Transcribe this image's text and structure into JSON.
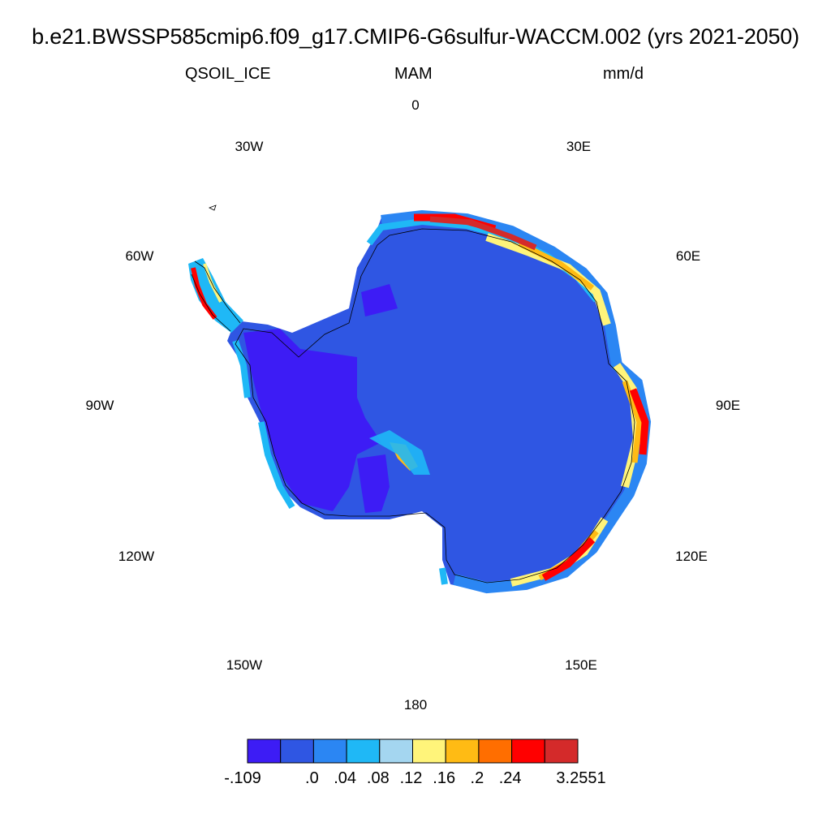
{
  "title": "b.e21.BWSSP585cmip6.f09_g17.CMIP6-G6sulfur-WACCM.002 (yrs 2021-2050)",
  "left_subtitle": "QSOIL_ICE",
  "center_subtitle": "MAM",
  "right_subtitle": "mm/d",
  "longitude_labels": [
    "0",
    "30E",
    "60E",
    "90E",
    "120E",
    "150E",
    "180",
    "150W",
    "120W",
    "90W",
    "60W",
    "30W"
  ],
  "colorbar": {
    "colors": [
      "#3d1cf5",
      "#2f56e3",
      "#2b86f3",
      "#1fb8f6",
      "#a4d6f0",
      "#fff47a",
      "#ffbb14",
      "#ff6e00",
      "#ff0000",
      "#d42a2a"
    ],
    "tick_labels": [
      "-.109",
      ".0",
      ".04",
      ".08",
      ".12",
      ".16",
      ".2",
      ".24",
      "3.2551"
    ]
  }
}
